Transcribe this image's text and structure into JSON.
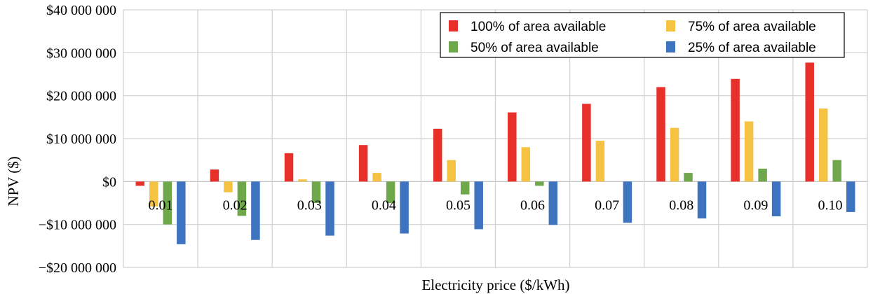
{
  "chart_data": {
    "type": "bar",
    "title": "",
    "xlabel": "Electricity price ($/kWh)",
    "ylabel": "NPV ($)",
    "ylim": [
      -20000000,
      40000000
    ],
    "yticks": [
      40000000,
      30000000,
      20000000,
      10000000,
      0,
      -10000000,
      -20000000
    ],
    "ytick_labels": [
      "$40 000 000",
      "$30 000 000",
      "$20 000 000",
      "$10 000 000",
      "$0",
      "−$10 000 000",
      "−$20 000 000"
    ],
    "categories": [
      "0.01",
      "0.02",
      "0.03",
      "0.04",
      "0.05",
      "0.06",
      "0.07",
      "0.08",
      "0.09",
      "0.10"
    ],
    "grid": true,
    "legend_position": "top-right",
    "series": [
      {
        "name": "100% of area available",
        "color": "#e8302a",
        "values": [
          -1000000,
          2800000,
          6600000,
          8500000,
          12300000,
          16100000,
          18100000,
          22000000,
          23900000,
          27700000
        ]
      },
      {
        "name": "75% of area available",
        "color": "#f5c242",
        "values": [
          -5800000,
          -2500000,
          500000,
          2000000,
          5000000,
          8000000,
          9500000,
          12500000,
          14000000,
          17000000
        ]
      },
      {
        "name": "50% of area available",
        "color": "#6ea84b",
        "values": [
          -10000000,
          -8000000,
          -5000000,
          -5000000,
          -3000000,
          -1000000,
          0,
          2000000,
          3000000,
          5000000
        ]
      },
      {
        "name": "25% of area available",
        "color": "#3e73bf",
        "values": [
          -14600000,
          -13600000,
          -12600000,
          -12100000,
          -11100000,
          -10100000,
          -9600000,
          -8600000,
          -8100000,
          -7100000
        ]
      }
    ]
  }
}
